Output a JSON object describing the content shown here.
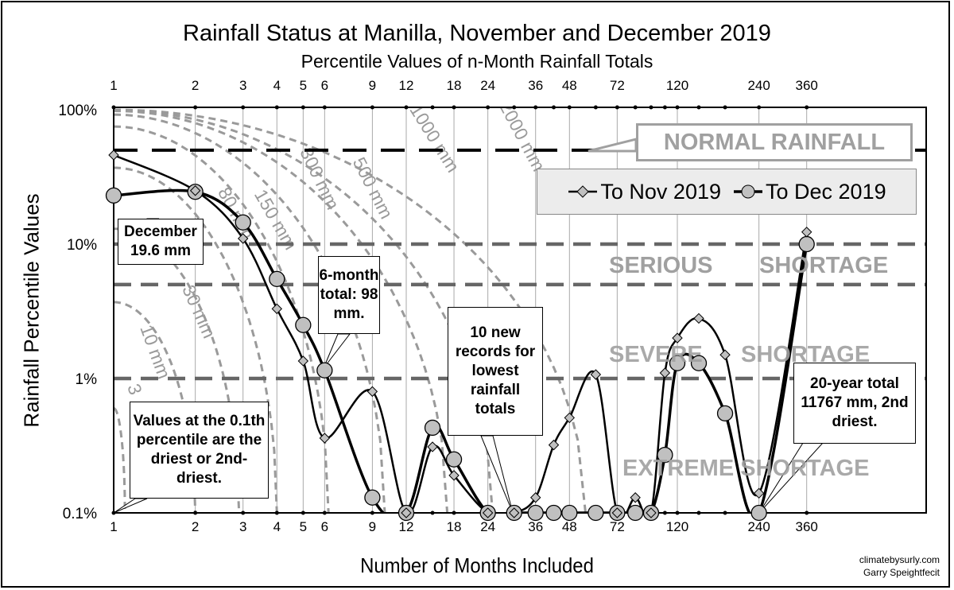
{
  "chart_data": {
    "type": "line",
    "title": "Rainfall Status at Manilla, November and December 2019",
    "subtitle": "Percentile Values of n-Month Rainfall Totals",
    "xlabel": "Number of Months Included",
    "ylabel": "Rainfall Percentile Values",
    "x_scale": "log",
    "y_scale": "log",
    "xlim": [
      1,
      360
    ],
    "ylim": [
      0.1,
      100
    ],
    "x_ticks": [
      1,
      2,
      3,
      4,
      5,
      6,
      9,
      12,
      18,
      24,
      36,
      48,
      72,
      120,
      240,
      360
    ],
    "y_ticks": [
      "0.1%",
      "1%",
      "10%",
      "100%"
    ],
    "y_tick_values": [
      0.1,
      1,
      10,
      100
    ],
    "grid": "vertical",
    "legend_position": "top-right",
    "x": [
      1,
      2,
      3,
      4,
      5,
      6,
      9,
      12,
      15,
      18,
      24,
      30,
      36,
      42,
      48,
      60,
      72,
      84,
      96,
      108,
      120,
      144,
      180,
      240,
      360
    ],
    "series": [
      {
        "name": "To Nov 2019",
        "marker": "diamond",
        "values": [
          46,
          25,
          11,
          3.3,
          1.35,
          0.36,
          0.8,
          0.1,
          0.31,
          0.19,
          0.1,
          0.1,
          0.13,
          0.32,
          0.51,
          1.07,
          0.1,
          0.13,
          0.1,
          1.1,
          2.0,
          2.8,
          1.5,
          0.14,
          12.3
        ]
      },
      {
        "name": "To Dec 2019",
        "marker": "circle",
        "values": [
          23,
          24.5,
          14.5,
          5.5,
          2.5,
          1.15,
          0.13,
          0.1,
          0.43,
          0.25,
          0.1,
          0.1,
          0.1,
          0.1,
          0.1,
          0.1,
          0.1,
          0.1,
          0.1,
          0.27,
          1.3,
          1.3,
          0.55,
          0.1,
          10
        ]
      }
    ],
    "reference_lines": [
      {
        "value": 50,
        "style": "black-dashed"
      },
      {
        "value": 10,
        "style": "gray-dashed"
      },
      {
        "value": 5,
        "style": "gray-dashed"
      },
      {
        "value": 1,
        "style": "gray-dashed"
      }
    ],
    "contours": [
      {
        "label": "3",
        "start_pct": 0.6,
        "end_months": 1.1
      },
      {
        "label": "10 mm",
        "start_pct": 3.7,
        "end_months": 2
      },
      {
        "label": "30 mm",
        "start_pct": 13,
        "end_months": 2.9
      },
      {
        "label": "80 mm",
        "start_pct": 37,
        "end_months": 4
      },
      {
        "label": "150 mm",
        "start_pct": 75,
        "end_months": 6.2
      },
      {
        "label": "300 mm",
        "start_pct": 92,
        "end_months": 10
      },
      {
        "label": "500 mm",
        "start_pct": 98,
        "end_months": 17
      },
      {
        "label": "1000 mm",
        "start_pct": 99.5,
        "end_months": 25
      },
      {
        "label": "2000 mm",
        "start_pct": 99.9,
        "end_months": 55
      }
    ],
    "zones": {
      "normal": "NORMAL RAINFALL",
      "serious_a": "SERIOUS",
      "serious_b": "SHORTAGE",
      "severe_a": "SEVERE",
      "severe_b": "SHORTAGE",
      "extreme": "EXTREME SHORTAGE"
    },
    "annotations": {
      "december": "December 19.6 mm",
      "six_month": "6-month total: 98 mm.",
      "records": "10 new records for lowest rainfall totals",
      "percentile": "Values at the 0.1th percentile are the driest or 2nd-driest.",
      "twenty_year": "20-year total 11767 mm, 2nd driest."
    }
  },
  "credits": {
    "site": "climatebysurly.com",
    "author": "Garry Speightfecit"
  },
  "colors": {
    "contour": "#9a9a9a",
    "marker_fill": "#c0c0c0",
    "zone_text": "#a0a0a0",
    "legend_bg": "#ececec"
  }
}
